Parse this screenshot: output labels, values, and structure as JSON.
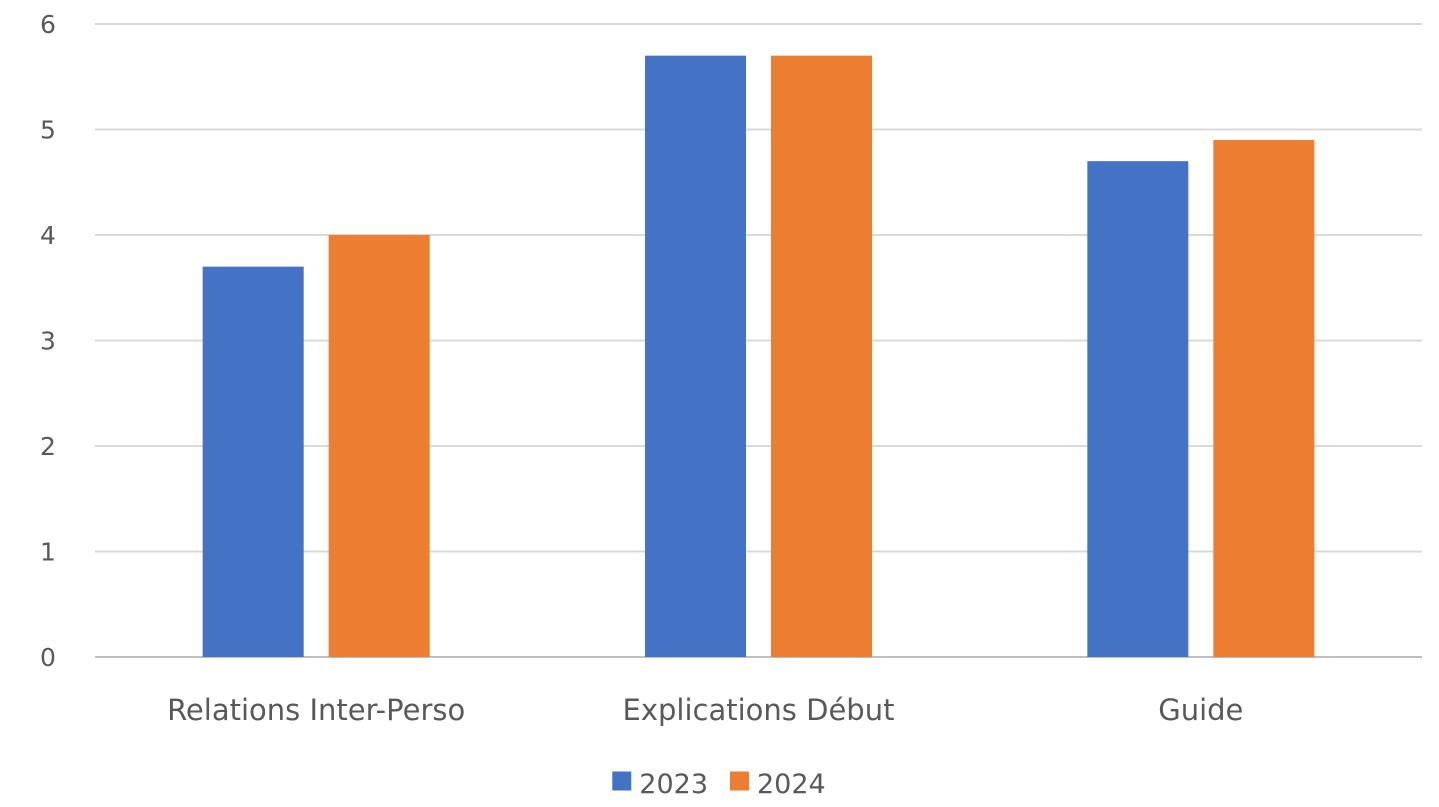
{
  "chart_data": {
    "type": "bar",
    "categories": [
      "Relations Inter-Perso",
      "Explications Début",
      "Guide"
    ],
    "series": [
      {
        "name": "2023",
        "values": [
          3.7,
          5.7,
          4.7
        ],
        "color": "#4472C4"
      },
      {
        "name": "2024",
        "values": [
          4.0,
          5.7,
          4.9
        ],
        "color": "#ED7D31"
      }
    ],
    "ylim": [
      0,
      6
    ],
    "yticks": [
      "0",
      "1",
      "2",
      "3",
      "4",
      "5",
      "6"
    ],
    "grid": true,
    "legend_position": "bottom",
    "title": "",
    "xlabel": "",
    "ylabel": ""
  }
}
